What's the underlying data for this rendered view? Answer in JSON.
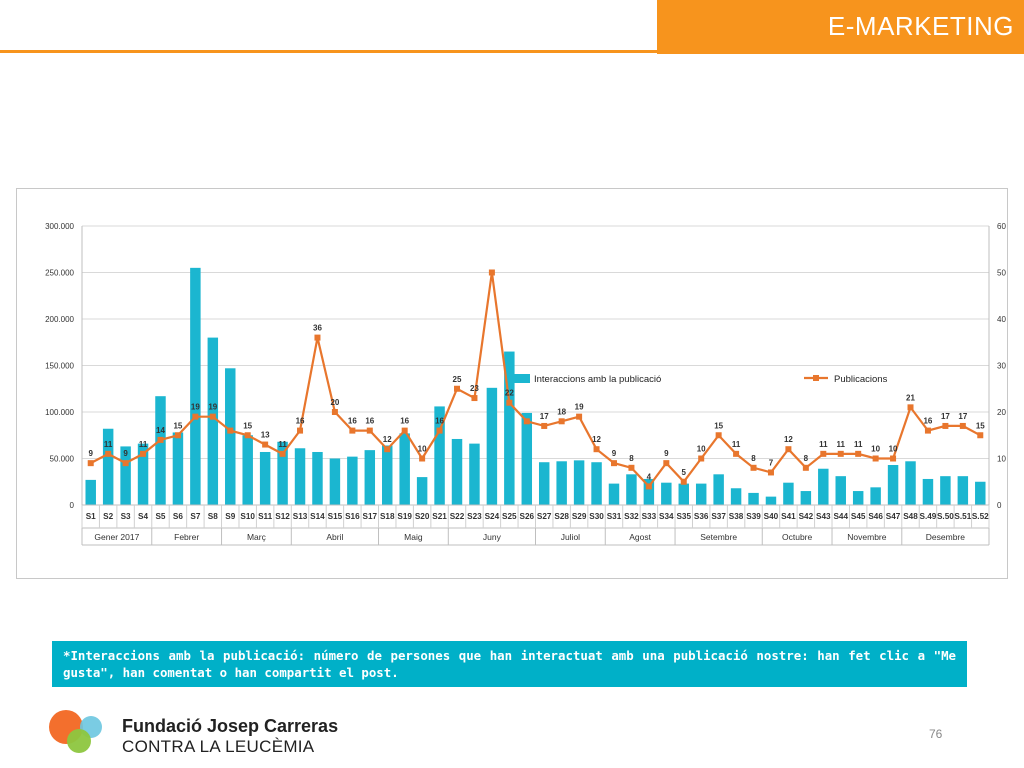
{
  "header": {
    "title": "E-MARKETING"
  },
  "colors": {
    "accent": "#f7941d",
    "bar": "#1bb6d0",
    "line": "#e8762d",
    "note_bg": "#00b0c8",
    "logo_orange": "#f26722",
    "logo_green": "#8dc63f",
    "logo_blue": "#6cc7e0"
  },
  "note": {
    "text": "*Interaccions amb la publicació: número de persones que han interactuat amb una publicació nostre: han fet clic a \"Me gusta\", han comentat o han compartit el post."
  },
  "footer": {
    "org_name": "Fundació Josep Carreras",
    "org_subtitle": "CONTRA LA LEUCÈMIA",
    "page_number": "76"
  },
  "chart_data": {
    "type": "bar",
    "title": "",
    "categories": [
      "S1",
      "S2",
      "S3",
      "S4",
      "S5",
      "S6",
      "S7",
      "S8",
      "S9",
      "S10",
      "S11",
      "S12",
      "S13",
      "S14",
      "S15",
      "S16",
      "S17",
      "S18",
      "S19",
      "S20",
      "S21",
      "S22",
      "S23",
      "S24",
      "S25",
      "S26",
      "S27",
      "S28",
      "S29",
      "S30",
      "S31",
      "S32",
      "S33",
      "S34",
      "S35",
      "S36",
      "S37",
      "S38",
      "S39",
      "S40",
      "S41",
      "S42",
      "S43",
      "S44",
      "S45",
      "S46",
      "S47",
      "S48",
      "S.49",
      "S.50",
      "S.51",
      "S.52"
    ],
    "months": [
      {
        "label": "Gener 2017",
        "weeks": 4
      },
      {
        "label": "Febrer",
        "weeks": 4
      },
      {
        "label": "Març",
        "weeks": 4
      },
      {
        "label": "Abril",
        "weeks": 5
      },
      {
        "label": "Maig",
        "weeks": 4
      },
      {
        "label": "Juny",
        "weeks": 5
      },
      {
        "label": "Juliol",
        "weeks": 4
      },
      {
        "label": "Agost",
        "weeks": 4
      },
      {
        "label": "Setembre",
        "weeks": 5
      },
      {
        "label": "Octubre",
        "weeks": 4
      },
      {
        "label": "Novembre",
        "weeks": 4
      },
      {
        "label": "Desembre",
        "weeks": 5
      }
    ],
    "series": [
      {
        "name": "Interaccions amb la publicació",
        "type": "bar",
        "axis": "left",
        "values": [
          27000,
          82000,
          63000,
          66000,
          117000,
          78000,
          255000,
          180000,
          147000,
          75000,
          57000,
          68000,
          61000,
          57000,
          50000,
          52000,
          59000,
          64000,
          77000,
          30000,
          106000,
          71000,
          66000,
          126000,
          165000,
          99000,
          46000,
          47000,
          48000,
          46000,
          23000,
          33000,
          28000,
          24000,
          23000,
          23000,
          33000,
          18000,
          13000,
          9000,
          24000,
          15000,
          39000,
          31000,
          15000,
          19000,
          43000,
          47000,
          28000,
          31000,
          31000,
          25000
        ]
      },
      {
        "name": "Publicacions",
        "type": "line",
        "axis": "right",
        "values": [
          9,
          11,
          9,
          11,
          14,
          15,
          19,
          19,
          16,
          15,
          13,
          11,
          16,
          36,
          20,
          16,
          16,
          12,
          16,
          10,
          16,
          25,
          23,
          50,
          22,
          18,
          17,
          18,
          19,
          12,
          9,
          8,
          4,
          9,
          5,
          10,
          15,
          11,
          8,
          7,
          12,
          8,
          11,
          11,
          11,
          10,
          10,
          21,
          16,
          17,
          17,
          15
        ],
        "data_labels": [
          "9",
          "11",
          "9",
          "11",
          "14",
          "15",
          "19",
          "19",
          "",
          "15",
          "13",
          "11",
          "16",
          "36",
          "20",
          "16",
          "16",
          "12",
          "16",
          "10",
          "16",
          "25",
          "23",
          "",
          "22",
          "",
          "17",
          "18",
          "19",
          "12",
          "9",
          "8",
          "4",
          "9",
          "5",
          "10",
          "15",
          "11",
          "8",
          "7",
          "12",
          "8",
          "11",
          "11",
          "11",
          "10",
          "10",
          "21",
          "16",
          "17",
          "17",
          "15"
        ]
      }
    ],
    "y_left": {
      "min": 0,
      "max": 300000,
      "ticks": [
        "0",
        "50.000",
        "100.000",
        "150.000",
        "200.000",
        "250.000",
        "300.000"
      ]
    },
    "y_right": {
      "min": 0,
      "max": 60,
      "ticks": [
        "0",
        "10",
        "20",
        "30",
        "40",
        "50",
        "60"
      ]
    },
    "gridlines": true,
    "legend_position": "middle"
  }
}
